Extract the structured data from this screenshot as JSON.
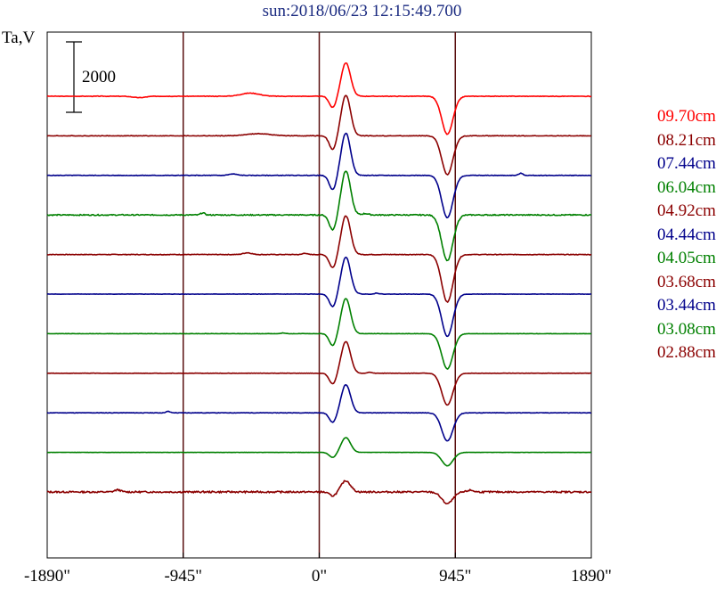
{
  "chart_data": {
    "type": "line",
    "title": "sun:2018/06/23 12:15:49.700",
    "ylabel": "Ta,V",
    "scale_bar": {
      "value": 2000,
      "label": "2000"
    },
    "xlim": [
      -1890,
      1890
    ],
    "x_ticks": [
      {
        "value": -1890,
        "label": "-1890\""
      },
      {
        "value": -945,
        "label": "-945\""
      },
      {
        "value": 0,
        "label": "0\""
      },
      {
        "value": 945,
        "label": "945\""
      },
      {
        "value": 1890,
        "label": "1890\""
      }
    ],
    "vertical_lines": [
      -945,
      0,
      945
    ],
    "colors": {
      "axis": "#000000",
      "vline": "#5a1010",
      "title": "#1a2a80"
    },
    "series": [
      {
        "name": "09.70cm",
        "color": "#ff0000",
        "offset": 0,
        "peak": 950,
        "dip": -1080,
        "scale": 1.0,
        "noise": 0.5,
        "events": [
          {
            "x": -480,
            "w": 90,
            "a": 90
          },
          {
            "x": -1250,
            "w": 60,
            "a": -40
          }
        ]
      },
      {
        "name": "08.21cm",
        "color": "#8b0000",
        "offset": 1,
        "peak": 1150,
        "dip": -1100,
        "scale": 1.0,
        "noise": 0.5,
        "events": [
          {
            "x": -420,
            "w": 120,
            "a": 60
          }
        ]
      },
      {
        "name": "07.44cm",
        "color": "#00008b",
        "offset": 2,
        "peak": 1200,
        "dip": -1200,
        "scale": 1.0,
        "noise": 0.5,
        "events": [
          {
            "x": -600,
            "w": 40,
            "a": 40
          },
          {
            "x": 1400,
            "w": 20,
            "a": 60
          }
        ]
      },
      {
        "name": "06.04cm",
        "color": "#008000",
        "offset": 3,
        "peak": 1250,
        "dip": -1300,
        "scale": 1.0,
        "noise": 1.0,
        "events": [
          {
            "x": -810,
            "w": 20,
            "a": 60
          },
          {
            "x": 320,
            "w": 30,
            "a": 40
          }
        ]
      },
      {
        "name": "04.92cm",
        "color": "#8b0000",
        "offset": 4,
        "peak": 1100,
        "dip": -1350,
        "scale": 1.0,
        "noise": 0.6,
        "events": [
          {
            "x": -500,
            "w": 40,
            "a": 50
          },
          {
            "x": -100,
            "w": 20,
            "a": 40
          }
        ]
      },
      {
        "name": "04.44cm",
        "color": "#00008b",
        "offset": 5,
        "peak": 1050,
        "dip": -1200,
        "scale": 1.0,
        "noise": 0.4,
        "events": [
          {
            "x": 400,
            "w": 20,
            "a": 30
          }
        ]
      },
      {
        "name": "04.05cm",
        "color": "#008000",
        "offset": 6,
        "peak": 1000,
        "dip": -1000,
        "scale": 1.0,
        "noise": 0.3,
        "events": [
          {
            "x": -250,
            "w": 20,
            "a": 20
          }
        ]
      },
      {
        "name": "03.68cm",
        "color": "#8b0000",
        "offset": 7,
        "peak": 900,
        "dip": -900,
        "scale": 1.0,
        "noise": 0.3,
        "events": [
          {
            "x": 350,
            "w": 20,
            "a": 30
          }
        ]
      },
      {
        "name": "03.44cm",
        "color": "#00008b",
        "offset": 8,
        "peak": 800,
        "dip": -800,
        "scale": 1.0,
        "noise": 0.4,
        "events": [
          {
            "x": -1050,
            "w": 20,
            "a": 40
          }
        ]
      },
      {
        "name": "03.08cm",
        "color": "#008000",
        "offset": 9,
        "peak": 420,
        "dip": -380,
        "scale": 1.0,
        "noise": 0.2,
        "events": []
      },
      {
        "name": "02.88cm",
        "color": "#8b0000",
        "offset": 10,
        "peak": 320,
        "dip": -330,
        "scale": 1.0,
        "noise": 1.5,
        "events": [
          {
            "x": -1400,
            "w": 30,
            "a": 60
          },
          {
            "x": 1050,
            "w": 30,
            "a": 50
          }
        ]
      }
    ]
  }
}
